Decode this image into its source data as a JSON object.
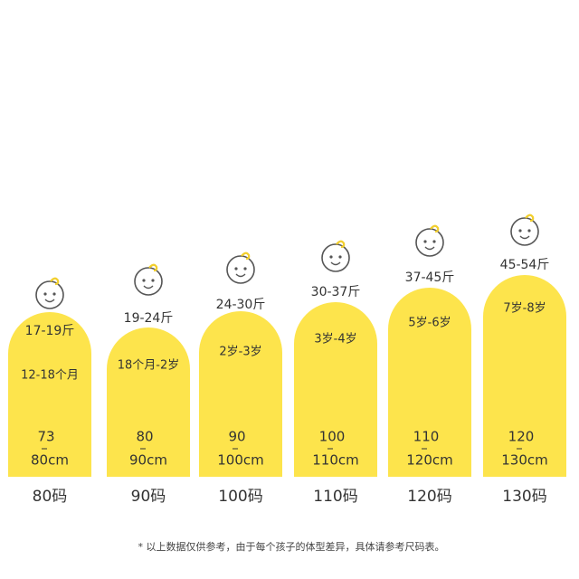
{
  "items": [
    {
      "weight": "17-19斤",
      "age": "12-18个月",
      "height_from": "73",
      "height_to": "80cm",
      "size": "80码"
    },
    {
      "weight": "19-24斤",
      "age": "18个月-2岁",
      "height_from": "80",
      "height_to": "90cm",
      "size": "90码"
    },
    {
      "weight": "24-30斤",
      "age": "2岁-3岁",
      "height_from": "90",
      "height_to": "100cm",
      "size": "100码"
    },
    {
      "weight": "30-37斤",
      "age": "3岁-4岁",
      "height_from": "100",
      "height_to": "110cm",
      "size": "110码"
    },
    {
      "weight": "37-45斤",
      "age": "5岁-6岁",
      "height_from": "110",
      "height_to": "120cm",
      "size": "120码"
    },
    {
      "weight": "45-54斤",
      "age": "7岁-8岁",
      "height_from": "120",
      "height_to": "130cm",
      "size": "130码"
    }
  ],
  "footnote": "* 以上数据仅供参考，由于每个孩子的体型差异，具体请参考尺码表。"
}
